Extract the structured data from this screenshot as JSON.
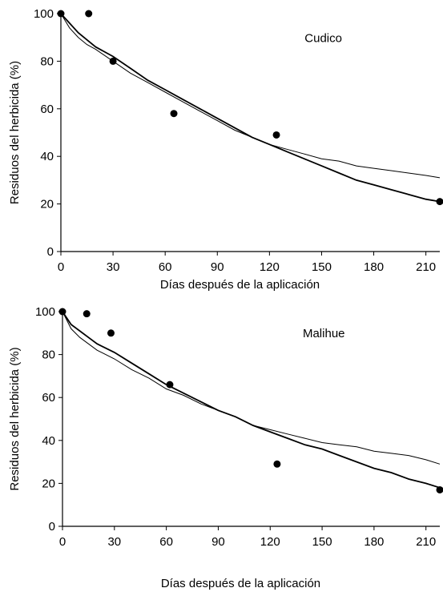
{
  "chart_data": [
    {
      "type": "scatter",
      "panel_label": "Cudico",
      "xlabel": "Días después de la aplicación",
      "ylabel": "Residuos del herbicida (%)",
      "xlim": [
        0,
        218
      ],
      "ylim": [
        0,
        100
      ],
      "xticks": [
        0,
        30,
        60,
        90,
        120,
        150,
        180,
        210
      ],
      "yticks": [
        0,
        20,
        40,
        60,
        80,
        100
      ],
      "grid": false,
      "points": [
        {
          "x": 0,
          "y": 100
        },
        {
          "x": 16,
          "y": 100
        },
        {
          "x": 30,
          "y": 80
        },
        {
          "x": 65,
          "y": 58
        },
        {
          "x": 124,
          "y": 49
        },
        {
          "x": 218,
          "y": 21
        }
      ],
      "curves": [
        {
          "style": "thin",
          "x": [
            0,
            5,
            10,
            15,
            20,
            30,
            40,
            50,
            60,
            70,
            80,
            90,
            100,
            110,
            120,
            130,
            140,
            150,
            160,
            170,
            180,
            190,
            200,
            210,
            218
          ],
          "y": [
            100,
            94,
            90,
            87,
            85,
            80,
            75,
            71,
            67,
            63,
            59,
            55,
            51,
            48,
            45,
            43,
            41,
            39,
            38,
            36,
            35,
            34,
            33,
            32,
            31
          ]
        },
        {
          "style": "thick",
          "x": [
            0,
            5,
            10,
            15,
            20,
            30,
            40,
            50,
            60,
            70,
            80,
            90,
            100,
            110,
            120,
            130,
            140,
            150,
            160,
            170,
            180,
            190,
            200,
            210,
            218
          ],
          "y": [
            100,
            96,
            92,
            89,
            86,
            82,
            77,
            72,
            68,
            64,
            60,
            56,
            52,
            48,
            45,
            42,
            39,
            36,
            33,
            30,
            28,
            26,
            24,
            22,
            21
          ]
        }
      ]
    },
    {
      "type": "scatter",
      "panel_label": "Malihue",
      "xlabel": "Días después de la aplicación",
      "ylabel": "Residuos del herbicida (%)",
      "xlim": [
        0,
        218
      ],
      "ylim": [
        0,
        100
      ],
      "xticks": [
        0,
        30,
        60,
        90,
        120,
        150,
        180,
        210
      ],
      "yticks": [
        0,
        20,
        40,
        60,
        80,
        100
      ],
      "grid": false,
      "points": [
        {
          "x": 0,
          "y": 100
        },
        {
          "x": 14,
          "y": 99
        },
        {
          "x": 28,
          "y": 90
        },
        {
          "x": 62,
          "y": 66
        },
        {
          "x": 124,
          "y": 29
        },
        {
          "x": 218,
          "y": 17
        }
      ],
      "curves": [
        {
          "style": "thin",
          "x": [
            0,
            5,
            10,
            15,
            20,
            30,
            40,
            50,
            60,
            70,
            80,
            90,
            100,
            110,
            120,
            130,
            140,
            150,
            160,
            170,
            180,
            190,
            200,
            210,
            218
          ],
          "y": [
            100,
            92,
            88,
            85,
            82,
            78,
            73,
            69,
            64,
            61,
            57,
            54,
            51,
            47,
            45,
            43,
            41,
            39,
            38,
            37,
            35,
            34,
            33,
            31,
            29
          ]
        },
        {
          "style": "thick",
          "x": [
            0,
            5,
            10,
            15,
            20,
            30,
            40,
            50,
            60,
            70,
            80,
            90,
            100,
            110,
            120,
            130,
            140,
            150,
            160,
            170,
            180,
            190,
            200,
            210,
            218
          ],
          "y": [
            100,
            94,
            91,
            88,
            85,
            81,
            76,
            71,
            66,
            62,
            58,
            54,
            51,
            47,
            44,
            41,
            38,
            36,
            33,
            30,
            27,
            25,
            22,
            20,
            18
          ]
        }
      ]
    }
  ]
}
